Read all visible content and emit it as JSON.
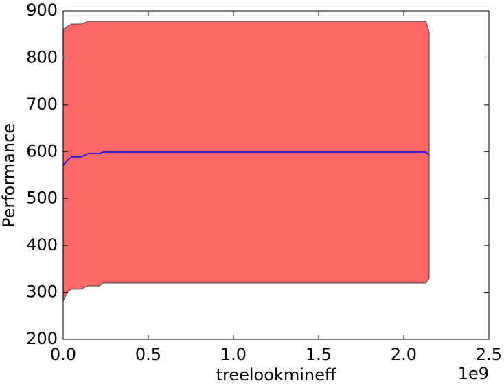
{
  "chart_data": {
    "type": "band_line",
    "x_label": "treelookmineff",
    "y_label": "Performance",
    "x_offset_label": "1e9",
    "x": [
      0,
      32000000,
      52000000,
      105000000,
      145000000,
      214000000,
      234000000,
      1100000000,
      2129000000,
      2149000000
    ],
    "series": [
      {
        "color": "#0000ff",
        "values": [
          571,
          584,
          589,
          589,
          596,
          596,
          599,
          599,
          599,
          593
        ]
      }
    ],
    "band": {
      "color": "#ff6666",
      "edge_color": "#555555",
      "upper": [
        860,
        869,
        872,
        872,
        878,
        878,
        878,
        878,
        878,
        856
      ],
      "lower": [
        282,
        304,
        307,
        307,
        314,
        314,
        320,
        320,
        320,
        330
      ]
    },
    "xlim": [
      0,
      2500000000
    ],
    "xticks": [
      {
        "value": 0,
        "label": "0.0"
      },
      {
        "value": 500000000,
        "label": "0.5"
      },
      {
        "value": 1000000000,
        "label": "1.0"
      },
      {
        "value": 1500000000,
        "label": "1.5"
      },
      {
        "value": 2000000000,
        "label": "2.0"
      },
      {
        "value": 2500000000,
        "label": "2.5"
      }
    ],
    "ylim": [
      200,
      900
    ],
    "yticks": [
      200,
      300,
      400,
      500,
      600,
      700,
      800,
      900
    ],
    "grid": false
  }
}
